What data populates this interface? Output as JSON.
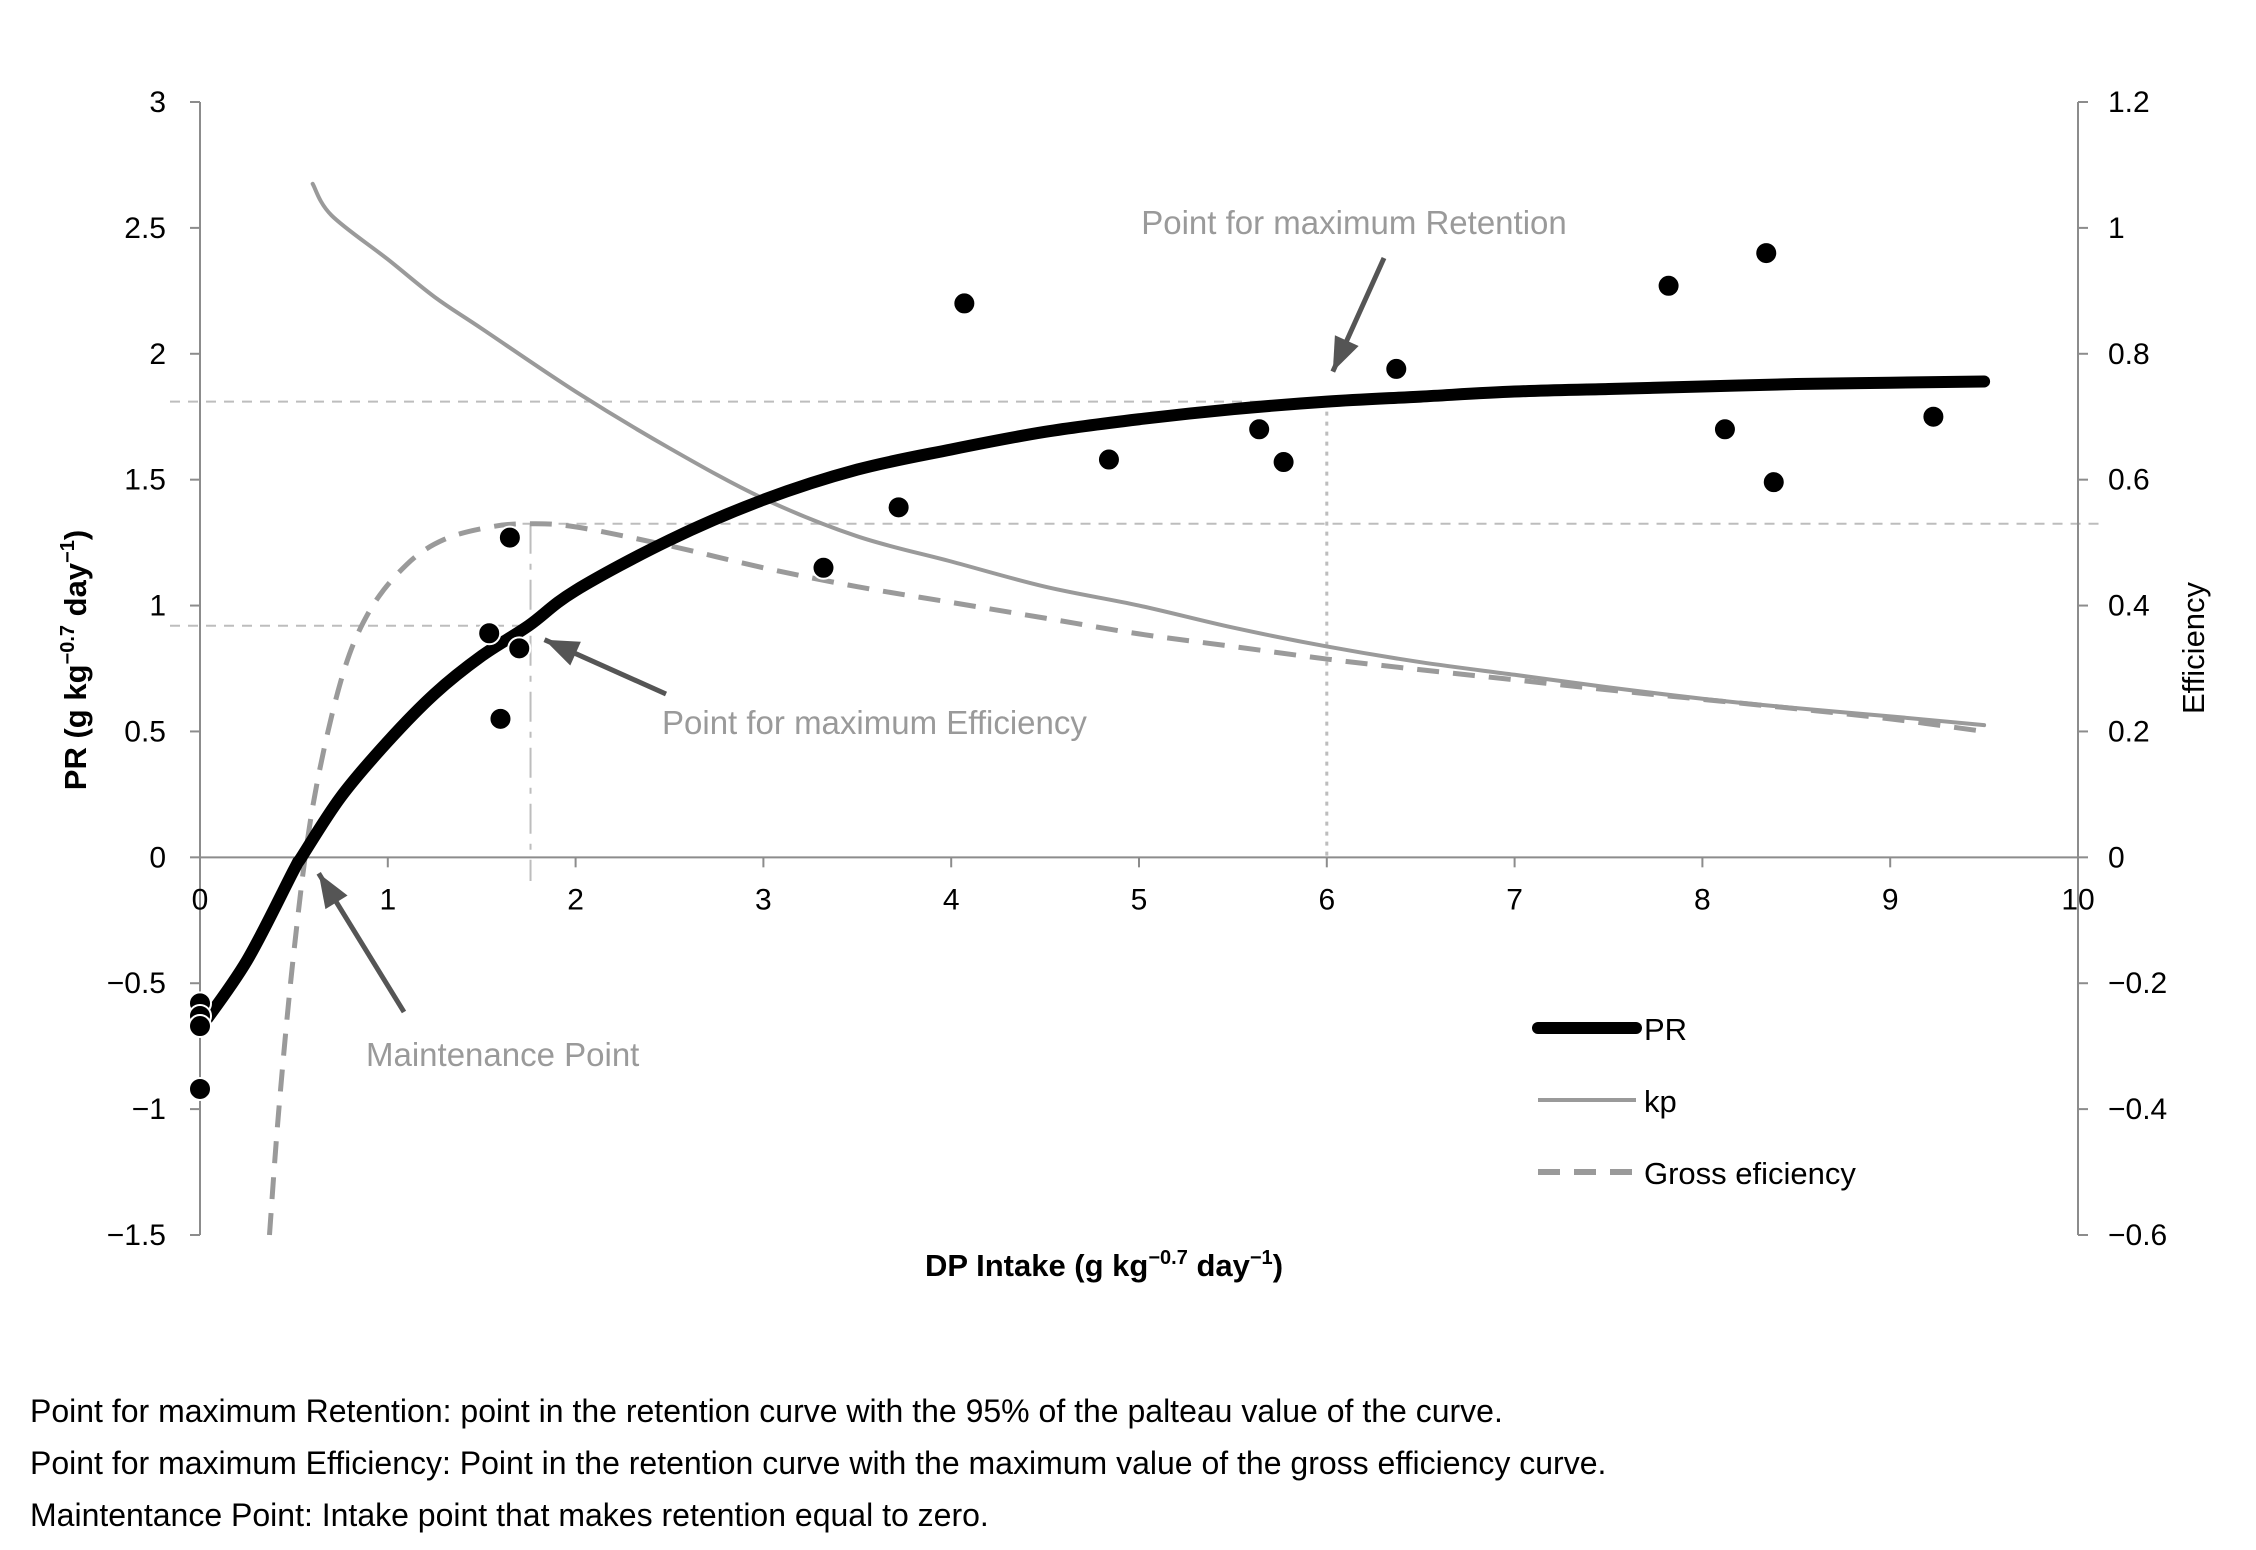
{
  "chart_data": {
    "type": "scatter",
    "title": "",
    "xlabel": "DP Intake (g kg",
    "xlabel_sup": "−0.7",
    "xlabel_tail": " day",
    "xlabel_sup2": "−1",
    "xlabel_close": ")",
    "ylabel": "PR (g kg",
    "ylabel_sup": "−0.7",
    "ylabel_tail": " day",
    "ylabel_sup2": "−1",
    "ylabel_close": ")",
    "y2label": "Efficiency",
    "xlim": [
      0,
      10
    ],
    "ylim": [
      -1.5,
      3
    ],
    "y2lim": [
      -0.6,
      1.2
    ],
    "x_ticks": [
      "0",
      "1",
      "2",
      "3",
      "4",
      "5",
      "6",
      "7",
      "8",
      "9",
      "10"
    ],
    "y_ticks": [
      "−1.5",
      "−1",
      "−0.5",
      "0",
      "0.5",
      "1",
      "1.5",
      "2",
      "2.5",
      "3"
    ],
    "y2_ticks": [
      "−0.6",
      "−0.4",
      "−0.2",
      "0",
      "0.2",
      "0.4",
      "0.6",
      "0.8",
      "1",
      "1.2"
    ],
    "observations": {
      "name": "observed PR",
      "points": [
        [
          0.0,
          -0.58
        ],
        [
          0.0,
          -0.63
        ],
        [
          0.0,
          -0.67
        ],
        [
          0.0,
          -0.92
        ],
        [
          1.54,
          0.89
        ],
        [
          1.6,
          0.55
        ],
        [
          1.65,
          1.27
        ],
        [
          1.7,
          0.83
        ],
        [
          3.32,
          1.15
        ],
        [
          3.72,
          1.39
        ],
        [
          4.07,
          2.2
        ],
        [
          4.84,
          1.58
        ],
        [
          5.64,
          1.7
        ],
        [
          5.77,
          1.57
        ],
        [
          6.37,
          1.94
        ],
        [
          7.82,
          2.27
        ],
        [
          8.12,
          1.7
        ],
        [
          8.34,
          2.4
        ],
        [
          8.38,
          1.49
        ],
        [
          9.23,
          1.75
        ]
      ]
    },
    "series": [
      {
        "name": "PR",
        "axis": "left",
        "style": "thick-solid",
        "color": "#000000",
        "x": [
          0.0,
          0.25,
          0.5,
          0.54,
          0.75,
          1.0,
          1.25,
          1.5,
          1.75,
          2.0,
          2.5,
          3.0,
          3.5,
          4.0,
          4.5,
          5.0,
          5.5,
          6.0,
          6.5,
          7.0,
          7.5,
          8.0,
          8.5,
          9.0,
          9.5
        ],
        "values": [
          -0.68,
          -0.41,
          -0.05,
          0.0,
          0.24,
          0.46,
          0.65,
          0.8,
          0.92,
          1.06,
          1.26,
          1.42,
          1.54,
          1.62,
          1.69,
          1.74,
          1.78,
          1.81,
          1.83,
          1.85,
          1.86,
          1.87,
          1.88,
          1.885,
          1.89
        ]
      },
      {
        "name": "kp",
        "axis": "right",
        "style": "solid",
        "color": "#9a9a9a",
        "x": [
          0.6,
          0.7,
          1.0,
          1.25,
          1.5,
          2.0,
          2.5,
          3.0,
          3.5,
          4.0,
          4.5,
          5.0,
          5.5,
          6.0,
          6.5,
          7.0,
          7.5,
          8.0,
          8.5,
          9.0,
          9.5
        ],
        "values": [
          1.07,
          1.02,
          0.95,
          0.89,
          0.84,
          0.74,
          0.65,
          0.57,
          0.51,
          0.47,
          0.43,
          0.4,
          0.365,
          0.335,
          0.31,
          0.29,
          0.27,
          0.252,
          0.237,
          0.224,
          0.21
        ]
      },
      {
        "name": "Gross eficiency",
        "axis": "right",
        "style": "dashed",
        "color": "#9a9a9a",
        "x": [
          0.37,
          0.42,
          0.5,
          0.6,
          0.75,
          0.9,
          1.1,
          1.3,
          1.55,
          1.75,
          2.0,
          2.5,
          3.0,
          3.5,
          4.0,
          4.5,
          5.0,
          5.5,
          6.0,
          6.5,
          7.0,
          7.5,
          8.0,
          8.5,
          9.0,
          9.5
        ],
        "values": [
          -0.6,
          -0.4,
          -0.15,
          0.08,
          0.28,
          0.39,
          0.465,
          0.505,
          0.525,
          0.53,
          0.525,
          0.495,
          0.46,
          0.43,
          0.405,
          0.38,
          0.355,
          0.335,
          0.315,
          0.298,
          0.282,
          0.266,
          0.251,
          0.236,
          0.22,
          0.2
        ]
      }
    ],
    "reference_lines": [
      {
        "name": "max-retention",
        "x": 6.0,
        "y": 1.81
      },
      {
        "name": "max-efficiency",
        "x": 1.76,
        "y": 0.92,
        "y2": 0.53
      },
      {
        "name": "maintenance",
        "x": 0.54,
        "y": 0.0
      }
    ],
    "annotations": [
      {
        "text": "Point for maximum Retention",
        "target_x": 6.0,
        "target_y": 1.81
      },
      {
        "text": "Point for maximum Efficiency",
        "target_x": 1.76,
        "target_y": 0.92
      },
      {
        "text": "Maintenance Point",
        "target_x": 0.6,
        "target_y": 0.0
      }
    ],
    "legend": {
      "placement": "bottom-right",
      "entries": [
        "PR",
        "kp",
        "Gross eficiency"
      ]
    }
  },
  "notes": [
    "Point for maximum Retention: point in the retention curve with the 95% of the palteau value of the curve.",
    "Point for maximum Efficiency: Point in the retention curve with the maximum value of the gross efficiency curve.",
    "Maintentance Point: Intake point that makes retention equal to zero."
  ]
}
